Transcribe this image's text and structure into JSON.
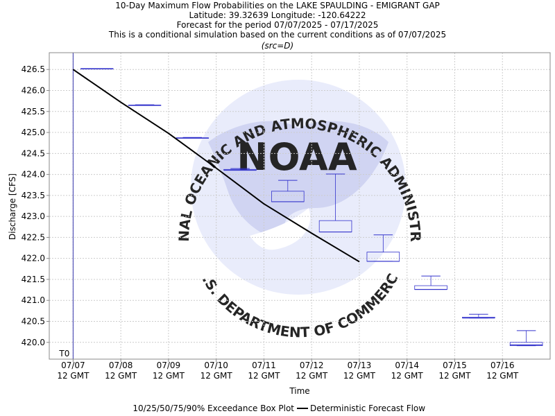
{
  "chart_data": {
    "type": "box",
    "title_lines": [
      "10-Day Maximum Flow Probabilities on the LAKE SPAULDING - EMIGRANT GAP",
      "Latitude: 39.32639 Longitude: -120.64222",
      "Forecast for the period 07/07/2025 - 07/17/2025",
      "This is a conditional simulation based on the current conditions as of 07/07/2025"
    ],
    "source_tag": "(src=D)",
    "xlabel": "Time",
    "ylabel": "Discharge [CFS]",
    "ylim": [
      419.6,
      426.9
    ],
    "yticks": [
      420.0,
      420.5,
      421.0,
      421.5,
      422.0,
      422.5,
      423.0,
      423.5,
      424.0,
      424.5,
      425.0,
      425.5,
      426.0,
      426.5
    ],
    "ytick_labels": [
      "420.0",
      "420.5",
      "421.0",
      "421.5",
      "422.0",
      "422.5",
      "423.0",
      "423.5",
      "424.0",
      "424.5",
      "425.0",
      "425.5",
      "426.0",
      "426.5"
    ],
    "x_range_days": [
      -0.5,
      10.0
    ],
    "xticks": [
      {
        "day": 0,
        "date": "07/07",
        "time": "12 GMT"
      },
      {
        "day": 1,
        "date": "07/08",
        "time": "12 GMT"
      },
      {
        "day": 2,
        "date": "07/09",
        "time": "12 GMT"
      },
      {
        "day": 3,
        "date": "07/10",
        "time": "12 GMT"
      },
      {
        "day": 4,
        "date": "07/11",
        "time": "12 GMT"
      },
      {
        "day": 5,
        "date": "07/12",
        "time": "12 GMT"
      },
      {
        "day": 6,
        "date": "07/13",
        "time": "12 GMT"
      },
      {
        "day": 7,
        "date": "07/14",
        "time": "12 GMT"
      },
      {
        "day": 8,
        "date": "07/15",
        "time": "12 GMT"
      },
      {
        "day": 9,
        "date": "07/16",
        "time": "12 GMT"
      }
    ],
    "t0_label": "T0",
    "t0_day": 0,
    "boxes": [
      {
        "day": 0.5,
        "p10": 426.52,
        "p25": 426.52,
        "p50": 426.52,
        "p75": 426.52,
        "p90": 426.52
      },
      {
        "day": 1.5,
        "p10": 425.65,
        "p25": 425.65,
        "p50": 425.65,
        "p75": 425.65,
        "p90": 425.66
      },
      {
        "day": 2.5,
        "p10": 424.87,
        "p25": 424.87,
        "p50": 424.87,
        "p75": 424.87,
        "p90": 424.88
      },
      {
        "day": 3.5,
        "p10": 424.1,
        "p25": 424.1,
        "p50": 424.1,
        "p75": 424.12,
        "p90": 424.14
      },
      {
        "day": 4.5,
        "p10": 423.35,
        "p25": 423.35,
        "p50": 423.35,
        "p75": 423.6,
        "p90": 423.86
      },
      {
        "day": 5.5,
        "p10": 422.63,
        "p25": 422.63,
        "p50": 422.63,
        "p75": 422.9,
        "p90": 424.01
      },
      {
        "day": 6.5,
        "p10": 421.93,
        "p25": 421.93,
        "p50": 421.93,
        "p75": 422.15,
        "p90": 422.56
      },
      {
        "day": 7.5,
        "p10": 421.26,
        "p25": 421.26,
        "p50": 421.26,
        "p75": 421.35,
        "p90": 421.58
      },
      {
        "day": 8.5,
        "p10": 420.58,
        "p25": 420.58,
        "p50": 420.58,
        "p75": 420.6,
        "p90": 420.67
      },
      {
        "day": 9.5,
        "p10": 419.92,
        "p25": 419.92,
        "p50": 419.94,
        "p75": 420.0,
        "p90": 420.28
      }
    ],
    "deterministic": {
      "x_days": [
        0,
        1,
        2,
        3,
        4,
        5,
        6
      ],
      "values": [
        426.5,
        425.72,
        424.98,
        424.15,
        423.3,
        422.6,
        421.92
      ]
    },
    "grid": true,
    "legend": {
      "placement": "bottom",
      "box_label": "10/25/50/75/90% Exceedance Box Plot",
      "line_label": "Deterministic Forecast Flow"
    },
    "colors": {
      "box": "#3333cc",
      "deterministic": "#000000",
      "t0_line": "#3333aa",
      "grid": "#cccccc",
      "watermark": "#c8cdf0"
    },
    "watermark": {
      "icon": "noaa-logo",
      "center_text": "NOAA",
      "top_arc": "NATIONAL OCEANIC AND ATMOSPHERIC ADMINISTRATION",
      "bottom_arc": "U.S. DEPARTMENT OF COMMERCE"
    }
  }
}
